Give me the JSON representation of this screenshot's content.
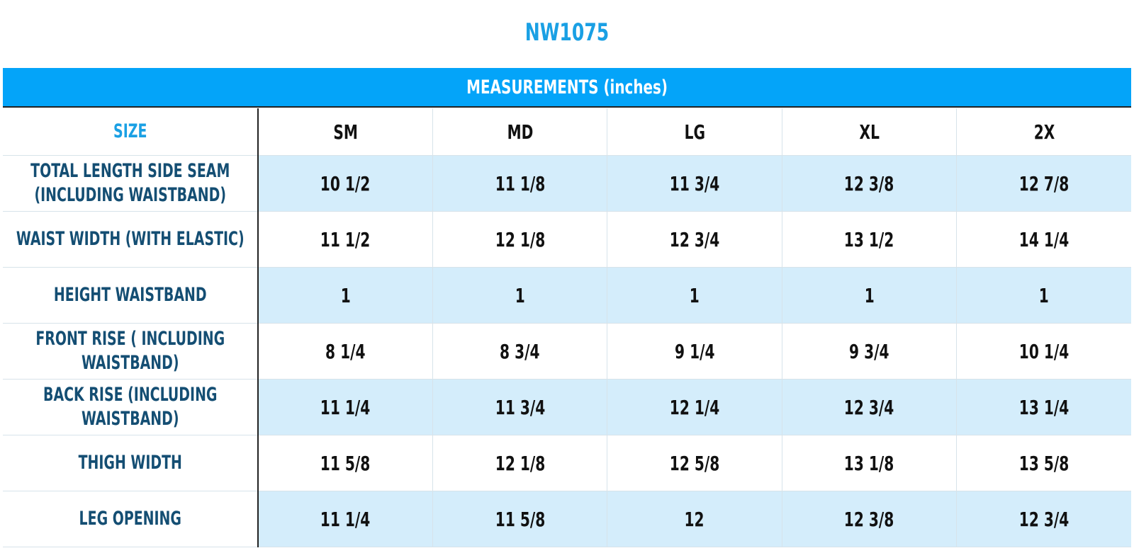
{
  "title": "NW1075",
  "banner": "MEASUREMENTS (inches)",
  "size_label": "SIZE",
  "sizes": [
    "SM",
    "MD",
    "LG",
    "XL",
    "2X"
  ],
  "rows": [
    {
      "label": "TOTAL LENGTH SIDE SEAM\n(INCLUDING WAISTBAND)",
      "values": [
        "10 1/2",
        "11 1/8",
        "11 3/4",
        "12 3/8",
        "12 7/8"
      ]
    },
    {
      "label": "WAIST WIDTH (WITH ELASTIC)",
      "values": [
        "11 1/2",
        "12 1/8",
        "12 3/4",
        "13 1/2",
        "14 1/4"
      ]
    },
    {
      "label": "HEIGHT WAISTBAND",
      "values": [
        "1",
        "1",
        "1",
        "1",
        "1"
      ]
    },
    {
      "label": "FRONT RISE ( INCLUDING\nWAISTBAND)",
      "values": [
        "8 1/4",
        "8 3/4",
        "9 1/4",
        "9 3/4",
        "10 1/4"
      ]
    },
    {
      "label": "BACK RISE (INCLUDING\nWAISTBAND)",
      "values": [
        "11 1/4",
        "11 3/4",
        "12 1/4",
        "12 3/4",
        "13 1/4"
      ]
    },
    {
      "label": "THIGH WIDTH",
      "values": [
        "11 5/8",
        "12 1/8",
        "12 5/8",
        "13 1/8",
        "13 5/8"
      ]
    },
    {
      "label": "LEG OPENING",
      "values": [
        "11 1/4",
        "11 5/8",
        "12",
        "12 3/8",
        "12 3/4"
      ]
    }
  ],
  "colors": {
    "title": "#1aa0e4",
    "banner_bg": "#04a4f9",
    "label_text": "#144e73",
    "shaded_row": "#d4edfb"
  }
}
